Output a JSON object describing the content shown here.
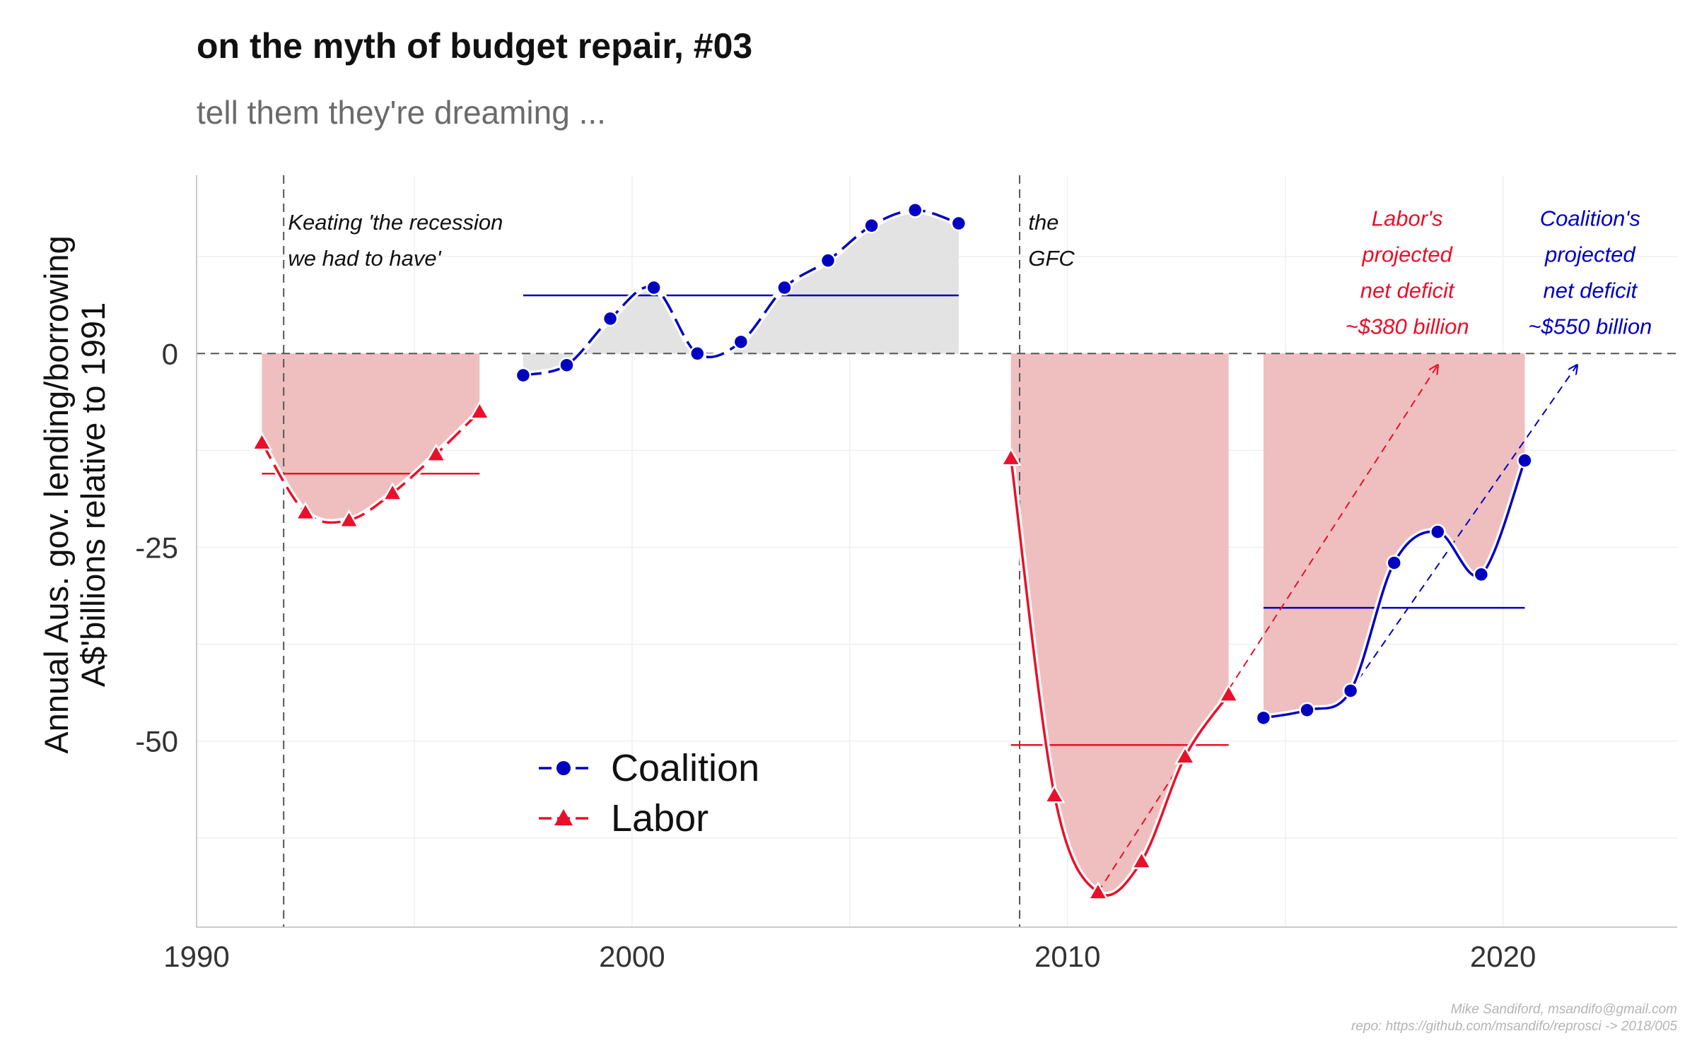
{
  "title": "on the myth of budget repair, #03",
  "subtitle": "tell them they're dreaming ...",
  "credits": [
    "Mike Sandiford, msandifo@gmail.com",
    "repo: https://github.com/msandifo/reprosci -> 2018/005"
  ],
  "colors": {
    "coalition": "#0000c0",
    "labor": "#e8102a",
    "deficit_fill": "#efbfbf",
    "surplus_fill": "#e3e3e3"
  },
  "chart_data": {
    "type": "line",
    "ylabel": [
      "Annual Aus. gov. lending/borrowing",
      "A$'billions relative to 1991"
    ],
    "xlabel": "",
    "xlim": [
      1990,
      2024
    ],
    "ylim": [
      -74,
      23
    ],
    "x_ticks": [
      1990,
      2000,
      2010,
      2020
    ],
    "y_ticks": [
      0,
      -25,
      -50
    ],
    "y_tick_labels": [
      "0",
      "-25",
      "-50"
    ],
    "legend": {
      "position": "bottom-center",
      "entries": [
        "Coalition",
        "Labor"
      ]
    },
    "series": [
      {
        "name": "Labor",
        "marker": "triangle",
        "segments": [
          {
            "x": [
              1991.5,
              1992.5,
              1993.5,
              1994.5,
              1995.5,
              1996.5
            ],
            "y": [
              -11.5,
              -20.5,
              -21.5,
              -18,
              -13,
              -7.5
            ],
            "mean": -15.5
          },
          {
            "x": [
              2008.7,
              2009.7,
              2010.7,
              2011.7,
              2012.7,
              2013.7
            ],
            "y": [
              -13.5,
              -57,
              -69.5,
              -65.5,
              -52,
              -44
            ],
            "mean": -50.5
          }
        ]
      },
      {
        "name": "Coalition",
        "marker": "circle",
        "segments": [
          {
            "x": [
              1997.5,
              1998.5,
              1999.5,
              2000.5,
              2001.5,
              2002.5,
              2003.5,
              2004.5,
              2005.5,
              2006.5,
              2007.5
            ],
            "y": [
              -2.8,
              -1.5,
              4.5,
              8.5,
              0,
              1.5,
              8.5,
              12,
              16.5,
              18.5,
              16.8
            ],
            "mean": 7.5
          },
          {
            "x": [
              2014.5,
              2015.5,
              2016.5,
              2017.5,
              2018.5,
              2019.5,
              2020.5
            ],
            "y": [
              -47,
              -46,
              -43.5,
              -27,
              -23,
              -28.5,
              -13.8
            ],
            "mean": -32.8
          }
        ]
      }
    ],
    "vlines": [
      1992,
      2008.9
    ],
    "projections": [
      {
        "series": "Labor",
        "from": [
          2010.7,
          -69.5
        ],
        "to": [
          2018.5,
          -1.5
        ]
      },
      {
        "series": "Coalition",
        "from": [
          2016.5,
          -43.5
        ],
        "to": [
          2021.7,
          -1.5
        ]
      }
    ],
    "annotations": [
      {
        "lines": [
          "Keating 'the recession",
          "we had to have'"
        ],
        "x": 1992.1,
        "y": 16,
        "color": "#111111",
        "align": "start"
      },
      {
        "lines": [
          "the",
          "GFC"
        ],
        "x": 2009.1,
        "y": 16,
        "color": "#111111",
        "align": "start"
      },
      {
        "lines": [
          "Labor's",
          "projected",
          "net deficit",
          "~$380 billion"
        ],
        "x": 2017.8,
        "y": 16.5,
        "color": "#e8102a",
        "align": "middle"
      },
      {
        "lines": [
          "Coalition's",
          "projected",
          "net deficit",
          "~$550 billion"
        ],
        "x": 2022.0,
        "y": 16.5,
        "color": "#0000c0",
        "align": "middle"
      }
    ]
  }
}
